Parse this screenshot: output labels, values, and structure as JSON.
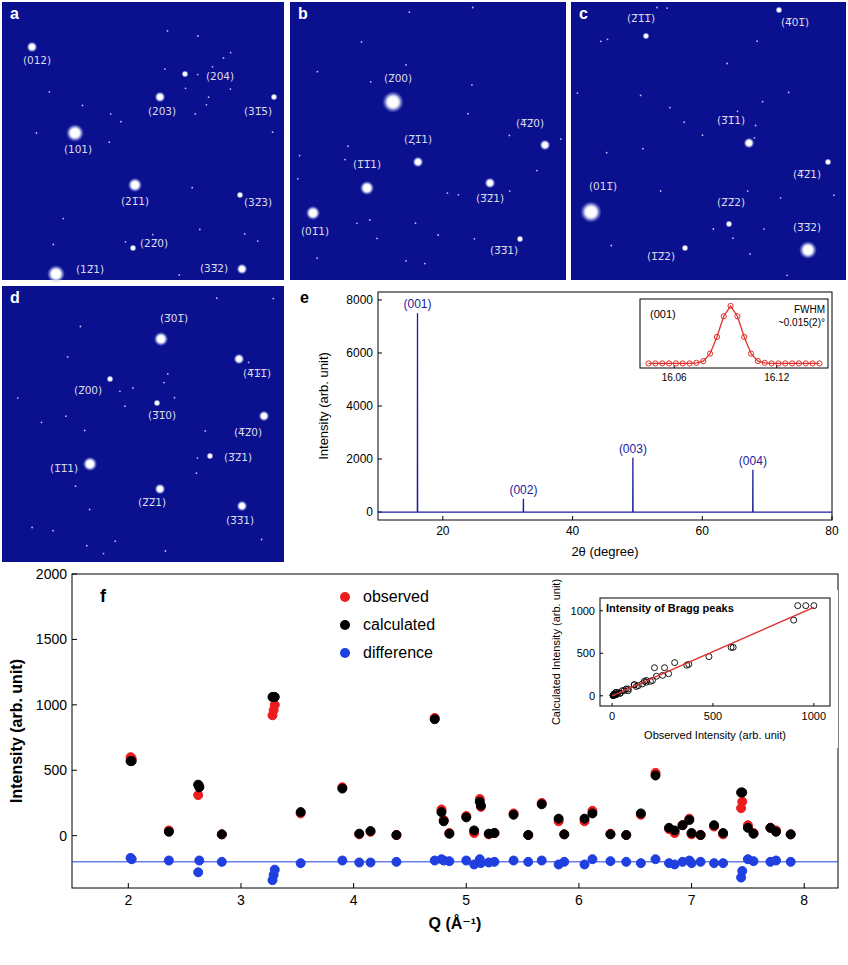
{
  "images": [
    {
      "letter": "a",
      "spots": [
        "(012)",
        "(204)",
        "(203)",
        "(31̅5)",
        "(101)",
        "(21̅1)",
        "(32̅3)",
        "(22̅0)",
        "(12̅1)",
        "(33̅2)"
      ]
    },
    {
      "letter": "b",
      "spots": [
        "(2̅00)",
        "(2̅1̅1)",
        "(4̅2̅0)",
        "(1̅1̅1)",
        "(3̅2̅1)",
        "(01̅1)",
        "(3̅3̅1)"
      ]
    },
    {
      "letter": "c",
      "spots": [
        "(2̅1̅1̅)",
        "(4̅01̅)",
        "(3̅1̅1)",
        "(4̅2̅1)",
        "(011̅)",
        "(2̅2̅2)",
        "(1̅2̅2)",
        "(3̅3̅2)"
      ]
    },
    {
      "letter": "d",
      "spots": [
        "(3̅01̅)",
        "(4̅1̅1̅)",
        "(2̅00)",
        "(3̅1̅0)",
        "(4̅2̅0)",
        "(1̅1̅1)",
        "(3̅2̅1)",
        "(2̅2̅1)",
        "(3̅3̅1)"
      ]
    }
  ],
  "chart_data": [
    {
      "panel": "e",
      "type": "line",
      "x_label": "2θ (degree)",
      "y_label": "Intensity (arb. unit)",
      "xlim": [
        10,
        80
      ],
      "xticks": [
        20,
        40,
        60,
        80
      ],
      "ylim": [
        -300,
        8300
      ],
      "yticks": [
        0,
        2000,
        4000,
        6000,
        8000
      ],
      "x": [
        10,
        16.07,
        16.09,
        16.11,
        32.4,
        32.42,
        32.44,
        49.28,
        49.3,
        49.32,
        67.78,
        67.8,
        67.82,
        80
      ],
      "series": [
        {
          "color": "#1c1c9c",
          "values": [
            0,
            0,
            7500,
            0,
            0,
            500,
            0,
            0,
            2050,
            0,
            0,
            1600,
            0,
            0
          ]
        }
      ],
      "annotations": [
        {
          "text": "(001)",
          "x": 16.09,
          "y": 7500
        },
        {
          "text": "(002)",
          "x": 32.42,
          "y": 500
        },
        {
          "text": "(003)",
          "x": 49.3,
          "y": 2050
        },
        {
          "text": "(004)",
          "x": 67.8,
          "y": 1600
        }
      ]
    },
    {
      "type": "scatter",
      "tick_labels": "x",
      "xlim": [
        16.04,
        16.15
      ],
      "xticks": [
        16.06,
        16.12
      ],
      "ylim": [
        -0.08,
        1.12
      ],
      "annotations": [
        {
          "text": "(001)"
        },
        {
          "text": "FWHM"
        },
        {
          "text": "~0.015(2)°"
        }
      ],
      "series": [
        {
          "type": "scatter",
          "marker": "open-circle",
          "color": "#e0302a",
          "x": [
            16.045,
            16.049,
            16.053,
            16.057,
            16.061,
            16.065,
            16.069,
            16.073,
            16.077,
            16.081,
            16.085,
            16.089,
            16.093,
            16.097,
            16.101,
            16.105,
            16.109,
            16.113,
            16.117,
            16.121,
            16.125,
            16.129,
            16.133,
            16.137,
            16.141,
            16.145
          ],
          "values": [
            0,
            0,
            0,
            0,
            0,
            0,
            0,
            0.01,
            0.04,
            0.17,
            0.46,
            0.82,
            1.0,
            0.82,
            0.46,
            0.17,
            0.04,
            0.01,
            0,
            0,
            0,
            0,
            0,
            0,
            0,
            0
          ]
        },
        {
          "type": "line",
          "line_style": "solid",
          "color": "#e0302a",
          "x": [
            16.045,
            16.049,
            16.053,
            16.057,
            16.061,
            16.065,
            16.069,
            16.073,
            16.077,
            16.081,
            16.085,
            16.089,
            16.093,
            16.097,
            16.101,
            16.105,
            16.109,
            16.113,
            16.117,
            16.121,
            16.125,
            16.129,
            16.133,
            16.137,
            16.141,
            16.145
          ],
          "values": [
            0,
            0,
            0,
            0,
            0,
            0,
            0,
            0.01,
            0.04,
            0.17,
            0.46,
            0.82,
            1.0,
            0.82,
            0.46,
            0.17,
            0.04,
            0.01,
            0,
            0,
            0,
            0,
            0,
            0,
            0,
            0
          ]
        }
      ]
    },
    {
      "panel": "f",
      "type": "scatter",
      "x_label": "Q (Å⁻¹)",
      "y_label": "Intensity (arb. unit)",
      "xlim": [
        1.5,
        8.3
      ],
      "xticks": [
        2,
        3,
        4,
        5,
        6,
        7,
        8
      ],
      "ylim": [
        -400,
        2000
      ],
      "yticks": [
        0,
        500,
        1000,
        1500,
        2000
      ],
      "legend": "top",
      "difference_baseline": -200,
      "x": [
        2.02,
        2.03,
        2.36,
        2.62,
        2.63,
        2.83,
        3.28,
        3.29,
        3.3,
        3.53,
        3.9,
        4.05,
        4.15,
        4.38,
        4.72,
        4.78,
        4.8,
        4.85,
        5.0,
        5.07,
        5.12,
        5.13,
        5.2,
        5.25,
        5.42,
        5.55,
        5.67,
        5.82,
        5.87,
        6.05,
        6.12,
        6.28,
        6.42,
        6.55,
        6.68,
        6.8,
        6.85,
        6.92,
        6.98,
        7.0,
        7.08,
        7.2,
        7.28,
        7.44,
        7.45,
        7.5,
        7.55,
        7.7,
        7.75,
        7.88
      ],
      "series": [
        {
          "name": "observed",
          "color": "#ee1c1c",
          "marker": "circle",
          "values": [
            600,
            590,
            40,
            310,
            380,
            10,
            920,
            960,
            1000,
            170,
            370,
            10,
            30,
            5,
            900,
            200,
            120,
            20,
            150,
            20,
            280,
            220,
            10,
            20,
            170,
            5,
            250,
            110,
            10,
            110,
            190,
            15,
            5,
            160,
            480,
            50,
            20,
            80,
            130,
            10,
            5,
            70,
            10,
            210,
            260,
            80,
            20,
            60,
            40,
            10
          ]
        },
        {
          "name": "calculated",
          "color": "#000000",
          "marker": "circle",
          "values": [
            570,
            570,
            30,
            390,
            370,
            10,
            1060,
            1060,
            1060,
            180,
            360,
            15,
            35,
            5,
            890,
            180,
            110,
            15,
            140,
            40,
            260,
            230,
            15,
            20,
            160,
            5,
            240,
            130,
            10,
            130,
            170,
            10,
            5,
            170,
            460,
            60,
            40,
            80,
            120,
            20,
            5,
            80,
            20,
            330,
            330,
            60,
            15,
            60,
            30,
            10
          ]
        },
        {
          "name": "difference",
          "color": "#1f3fe0",
          "marker": "circle",
          "values": [
            -170,
            -180,
            -190,
            -280,
            -190,
            -200,
            -340,
            -300,
            -260,
            -210,
            -190,
            -205,
            -205,
            -200,
            -190,
            -180,
            -190,
            -195,
            -190,
            -220,
            -180,
            -210,
            -205,
            -200,
            -190,
            -200,
            -190,
            -220,
            -200,
            -220,
            -180,
            -195,
            -200,
            -210,
            -180,
            -210,
            -220,
            -200,
            -190,
            -210,
            -200,
            -210,
            -210,
            -320,
            -270,
            -180,
            -195,
            -200,
            -190,
            -200
          ]
        }
      ]
    },
    {
      "type": "scatter",
      "title": "Intensity of Bragg peaks",
      "x_label": "Observed Intensity (arb. unit)",
      "y_label": "Calculated Intensity (arb. unit)",
      "xlim": [
        -60,
        1080
      ],
      "xticks": [
        0,
        500,
        1000
      ],
      "ylim": [
        -120,
        1150
      ],
      "yticks": [
        0,
        500,
        1000
      ],
      "series": [
        {
          "type": "scatter",
          "marker": "open-circle",
          "color": "#000000",
          "x": [
            600,
            590,
            40,
            310,
            380,
            10,
            920,
            960,
            1000,
            170,
            370,
            10,
            30,
            5,
            900,
            200,
            120,
            20,
            150,
            20,
            280,
            220,
            10,
            20,
            170,
            5,
            250,
            110,
            10,
            110,
            190,
            15,
            5,
            160,
            480,
            50,
            20,
            80,
            130,
            10,
            5,
            70,
            10,
            210,
            260,
            80,
            20,
            60,
            40,
            10
          ],
          "values": [
            570,
            570,
            30,
            390,
            370,
            10,
            1060,
            1060,
            1060,
            180,
            360,
            15,
            35,
            5,
            890,
            180,
            110,
            15,
            140,
            40,
            260,
            230,
            15,
            20,
            160,
            5,
            240,
            130,
            10,
            130,
            170,
            10,
            5,
            170,
            460,
            60,
            40,
            80,
            120,
            20,
            5,
            80,
            20,
            330,
            330,
            60,
            15,
            60,
            30,
            10
          ]
        },
        {
          "type": "line",
          "line_style": "solid",
          "color": "#e0302a",
          "x": [
            0,
            1000
          ],
          "values": [
            0,
            1040
          ]
        }
      ]
    }
  ]
}
